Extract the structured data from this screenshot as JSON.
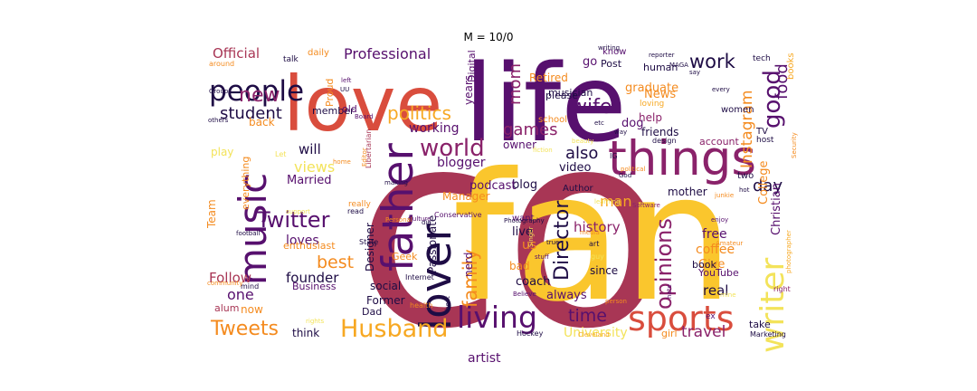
{
  "title": "M = 10/0",
  "palette": {
    "near_black": "#1e0c45",
    "purple": "#57106e",
    "magenta": "#8a226a",
    "rose": "#a83655",
    "red_orange": "#d94d3d",
    "orange": "#f48b1f",
    "amber": "#f7a822",
    "yellow": "#fac62d",
    "pale_yellow": "#f3e35a"
  },
  "words": [
    {
      "text": "fan",
      "color": "#fac62d"
    },
    {
      "text": "life",
      "color": "#57106e"
    },
    {
      "text": "love",
      "color": "#d94d3d"
    },
    {
      "text": "things",
      "color": "#8a226a"
    },
    {
      "text": "lover",
      "color": "#1e0c45"
    },
    {
      "text": "father",
      "color": "#57106e"
    },
    {
      "text": "music",
      "color": "#57106e"
    },
    {
      "text": "sports",
      "color": "#d94d3d"
    },
    {
      "text": "writer",
      "color": "#f3e35a"
    },
    {
      "text": "living",
      "color": "#57106e"
    },
    {
      "text": "Husband",
      "color": "#f7a822"
    },
    {
      "text": "people",
      "color": "#1e0c45"
    },
    {
      "text": "Twitter",
      "color": "#57106e"
    },
    {
      "text": "world",
      "color": "#8a226a"
    },
    {
      "text": "good",
      "color": "#57106e"
    },
    {
      "text": "work",
      "color": "#1e0c45"
    },
    {
      "text": "opinions",
      "color": "#8a226a"
    },
    {
      "text": "Director",
      "color": "#1e0c45"
    },
    {
      "text": "Tweets",
      "color": "#f48b1f"
    },
    {
      "text": "new",
      "color": "#8a226a"
    },
    {
      "text": "politics",
      "color": "#f7a822"
    },
    {
      "text": "family",
      "color": "#f48b1f"
    },
    {
      "text": "best",
      "color": "#f48b1f"
    },
    {
      "text": "wife",
      "color": "#57106e"
    },
    {
      "text": "student",
      "color": "#1e0c45"
    },
    {
      "text": "Professional",
      "color": "#57106e"
    },
    {
      "text": "games",
      "color": "#8a226a"
    },
    {
      "text": "mom",
      "color": "#8a226a"
    },
    {
      "text": "also",
      "color": "#1e0c45"
    },
    {
      "text": "time",
      "color": "#57106e"
    },
    {
      "text": "travel",
      "color": "#8a226a"
    },
    {
      "text": "day",
      "color": "#1e0c45"
    },
    {
      "text": "food",
      "color": "#57106e"
    },
    {
      "text": "Instagram",
      "color": "#f48b1f"
    },
    {
      "text": "Official",
      "color": "#a83655"
    },
    {
      "text": "views",
      "color": "#f3e35a"
    },
    {
      "text": "founder",
      "color": "#1e0c45"
    },
    {
      "text": "one",
      "color": "#57106e"
    },
    {
      "text": "blogger",
      "color": "#57106e"
    },
    {
      "text": "man",
      "color": "#f7a822"
    },
    {
      "text": "history",
      "color": "#8a226a"
    },
    {
      "text": "Follow",
      "color": "#a83655"
    },
    {
      "text": "loves",
      "color": "#57106e"
    },
    {
      "text": "will",
      "color": "#1e0c45"
    },
    {
      "text": "Married",
      "color": "#57106e"
    },
    {
      "text": "working",
      "color": "#57106e"
    },
    {
      "text": "College",
      "color": "#f48b1f"
    },
    {
      "text": "University",
      "color": "#f3e35a"
    },
    {
      "text": "Christian",
      "color": "#57106e"
    },
    {
      "text": "real",
      "color": "#1e0c45"
    },
    {
      "text": "artist",
      "color": "#57106e"
    },
    {
      "text": "coach",
      "color": "#1e0c45"
    },
    {
      "text": "always",
      "color": "#57106e"
    },
    {
      "text": "free",
      "color": "#57106e"
    },
    {
      "text": "coffee",
      "color": "#f48b1f"
    },
    {
      "text": "Give",
      "color": "#f48b1f"
    },
    {
      "text": "blog",
      "color": "#1e0c45"
    },
    {
      "text": "podcast",
      "color": "#57106e"
    },
    {
      "text": "mother",
      "color": "#1e0c45"
    },
    {
      "text": "News",
      "color": "#f48b1f"
    },
    {
      "text": "graduate",
      "color": "#f48b1f"
    },
    {
      "text": "help",
      "color": "#8a226a"
    },
    {
      "text": "friends",
      "color": "#1e0c45"
    },
    {
      "text": "video",
      "color": "#1e0c45"
    },
    {
      "text": "Manager",
      "color": "#f48b1f"
    },
    {
      "text": "Retired",
      "color": "#f48b1f"
    },
    {
      "text": "go",
      "color": "#57106e"
    },
    {
      "text": "musician",
      "color": "#1e0c45"
    },
    {
      "text": "please",
      "color": "#1e0c45"
    },
    {
      "text": "dog",
      "color": "#57106e"
    },
    {
      "text": "human",
      "color": "#1e0c45"
    },
    {
      "text": "account",
      "color": "#8a226a"
    },
    {
      "text": "owner",
      "color": "#57106e"
    },
    {
      "text": "live",
      "color": "#1e0c45"
    },
    {
      "text": "us",
      "color": "#f48b1f"
    },
    {
      "text": "bad",
      "color": "#f48b1f"
    },
    {
      "text": "nerd",
      "color": "#57106e"
    },
    {
      "text": "Passionate",
      "color": "#1e0c45"
    },
    {
      "text": "Designer",
      "color": "#1e0c45"
    },
    {
      "text": "enthusiast",
      "color": "#f48b1f"
    },
    {
      "text": "Business",
      "color": "#57106e"
    },
    {
      "text": "Former",
      "color": "#1e0c45"
    },
    {
      "text": "Dad",
      "color": "#1e0c45"
    },
    {
      "text": "think",
      "color": "#1e0c45"
    },
    {
      "text": "book",
      "color": "#1e0c45"
    },
    {
      "text": "YouTube",
      "color": "#57106e"
    },
    {
      "text": "since",
      "color": "#1e0c45"
    },
    {
      "text": "social",
      "color": "#1e0c45"
    },
    {
      "text": "now",
      "color": "#f48b1f"
    },
    {
      "text": "alum",
      "color": "#a83655"
    },
    {
      "text": "Geek",
      "color": "#f48b1f"
    },
    {
      "text": "Team",
      "color": "#f48b1f"
    },
    {
      "text": "everything",
      "color": "#f48b1f"
    },
    {
      "text": "play",
      "color": "#f3e35a"
    },
    {
      "text": "back",
      "color": "#f48b1f"
    },
    {
      "text": "member",
      "color": "#1e0c45"
    },
    {
      "text": "old",
      "color": "#57106e"
    },
    {
      "text": "years",
      "color": "#57106e"
    },
    {
      "text": "Proud",
      "color": "#f48b1f"
    },
    {
      "text": "Digital",
      "color": "#57106e"
    },
    {
      "text": "daily",
      "color": "#f48b1f"
    },
    {
      "text": "talk",
      "color": "#1e0c45"
    },
    {
      "text": "Post",
      "color": "#1e0c45"
    },
    {
      "text": "know",
      "color": "#57106e"
    },
    {
      "text": "women",
      "color": "#1e0c45"
    },
    {
      "text": "loving",
      "color": "#f7a822"
    },
    {
      "text": "school",
      "color": "#f48b1f"
    },
    {
      "text": "books",
      "color": "#f7a822"
    },
    {
      "text": "tech",
      "color": "#1e0c45"
    },
    {
      "text": "TV",
      "color": "#1e0c45"
    },
    {
      "text": "host",
      "color": "#1e0c45"
    },
    {
      "text": "two",
      "color": "#1e0c45"
    },
    {
      "text": "want",
      "color": "#57106e"
    },
    {
      "text": "Author",
      "color": "#1e0c45"
    },
    {
      "text": "Hockey",
      "color": "#1e0c45"
    },
    {
      "text": "girl",
      "color": "#f48b1f"
    },
    {
      "text": "take",
      "color": "#1e0c45"
    },
    {
      "text": "Marketing",
      "color": "#1e0c45"
    },
    {
      "text": "ex",
      "color": "#57106e"
    },
    {
      "text": "Cleveland",
      "color": "#f7a822"
    },
    {
      "text": "photographer",
      "color": "#f7a822"
    },
    {
      "text": "right",
      "color": "#8a226a"
    },
    {
      "text": "Libertarian",
      "color": "#a83655"
    },
    {
      "text": "Conservative",
      "color": "#57106e"
    },
    {
      "text": "Photography",
      "color": "#1e0c45"
    },
    {
      "text": "Culture",
      "color": "#57106e"
    },
    {
      "text": "Personal",
      "color": "#f48b1f"
    },
    {
      "text": "State",
      "color": "#1e0c45"
    },
    {
      "text": "Internet",
      "color": "#1e0c45"
    },
    {
      "text": "health",
      "color": "#f48b1f"
    },
    {
      "text": "rights",
      "color": "#f3e35a"
    },
    {
      "text": "mind",
      "color": "#1e0c45"
    },
    {
      "text": "football",
      "color": "#1e0c45"
    },
    {
      "text": "really",
      "color": "#f48b1f"
    },
    {
      "text": "read",
      "color": "#1e0c45"
    },
    {
      "text": "Board",
      "color": "#57106e"
    },
    {
      "text": "Group",
      "color": "#1e0c45"
    },
    {
      "text": "around",
      "color": "#f48b1f"
    },
    {
      "text": "others",
      "color": "#1e0c45"
    },
    {
      "text": "support",
      "color": "#f3e35a"
    },
    {
      "text": "community",
      "color": "#f48b1f"
    },
    {
      "text": "left",
      "color": "#57106e"
    },
    {
      "text": "UU",
      "color": "#1e0c45"
    },
    {
      "text": "beauty",
      "color": "#f3e35a"
    },
    {
      "text": "fiction",
      "color": "#f3e35a"
    },
    {
      "text": "learning",
      "color": "#f3e35a"
    },
    {
      "text": "Software",
      "color": "#8a226a"
    },
    {
      "text": "political",
      "color": "#f48b1f"
    },
    {
      "text": "media",
      "color": "#f48b1f"
    },
    {
      "text": "guy",
      "color": "#f3e35a"
    },
    {
      "text": "IG",
      "color": "#1e0c45"
    },
    {
      "text": "art",
      "color": "#1e0c45"
    },
    {
      "text": "design",
      "color": "#1e0c45"
    },
    {
      "text": "writing",
      "color": "#1e0c45"
    },
    {
      "text": "reporter",
      "color": "#1e0c45"
    },
    {
      "text": "MAGA",
      "color": "#1e0c45"
    },
    {
      "text": "say",
      "color": "#1e0c45"
    },
    {
      "text": "every",
      "color": "#1e0c45"
    },
    {
      "text": "junkie",
      "color": "#f48b1f"
    },
    {
      "text": "hot",
      "color": "#1e0c45"
    },
    {
      "text": "enjoy",
      "color": "#57106e"
    },
    {
      "text": "Amateur",
      "color": "#f48b1f"
    },
    {
      "text": "hate",
      "color": "#57106e"
    },
    {
      "text": "mine",
      "color": "#f3e35a"
    },
    {
      "text": "Believe",
      "color": "#57106e"
    },
    {
      "text": "person",
      "color": "#f48b1f"
    },
    {
      "text": "beat",
      "color": "#1e0c45"
    },
    {
      "text": "true",
      "color": "#1e0c45"
    },
    {
      "text": "stuff",
      "color": "#57106e"
    },
    {
      "text": "Singer",
      "color": "#f3e35a"
    },
    {
      "text": "God",
      "color": "#1e0c45"
    },
    {
      "text": "way",
      "color": "#1e0c45"
    },
    {
      "text": "etc",
      "color": "#1e0c45"
    },
    {
      "text": "making",
      "color": "#1e0c45"
    },
    {
      "text": "Editor",
      "color": "#f48b1f"
    },
    {
      "text": "die",
      "color": "#1e0c45"
    },
    {
      "text": "home",
      "color": "#f48b1f"
    },
    {
      "text": "Security",
      "color": "#f48b1f"
    },
    {
      "text": "Let",
      "color": "#f3e35a"
    },
    {
      "text": "co",
      "color": "#a83655"
    }
  ]
}
